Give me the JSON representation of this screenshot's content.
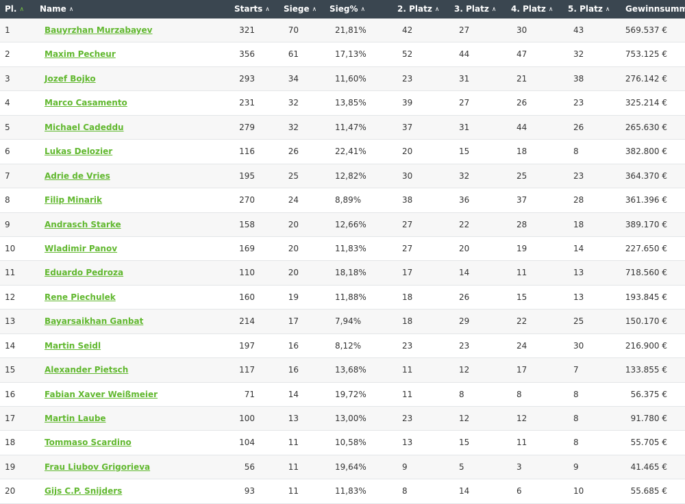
{
  "headers": {
    "pl": "Pl.",
    "name": "Name",
    "starts": "Starts",
    "siege": "Siege",
    "siegpct": "Sieg%",
    "platz2": "2. Platz",
    "platz3": "3. Platz",
    "platz4": "4. Platz",
    "platz5": "5. Platz",
    "gewinn": "Gewinnsumme"
  },
  "sort_icon": "chevron-up-icon",
  "colors": {
    "header_bg": "#3a4650",
    "link": "#61b82f",
    "active_sort": "#7ac943"
  },
  "rows": [
    {
      "pl": "1",
      "name": "Bauyrzhan Murzabayev",
      "starts": "321",
      "siege": "70",
      "pct": "21,81%",
      "p2": "42",
      "p3": "27",
      "p4": "30",
      "p5": "43",
      "sum": "569.537 €"
    },
    {
      "pl": "2",
      "name": "Maxim Pecheur",
      "starts": "356",
      "siege": "61",
      "pct": "17,13%",
      "p2": "52",
      "p3": "44",
      "p4": "47",
      "p5": "32",
      "sum": "753.125 €"
    },
    {
      "pl": "3",
      "name": "Jozef Bojko",
      "starts": "293",
      "siege": "34",
      "pct": "11,60%",
      "p2": "23",
      "p3": "31",
      "p4": "21",
      "p5": "38",
      "sum": "276.142 €"
    },
    {
      "pl": "4",
      "name": "Marco Casamento",
      "starts": "231",
      "siege": "32",
      "pct": "13,85%",
      "p2": "39",
      "p3": "27",
      "p4": "26",
      "p5": "23",
      "sum": "325.214 €"
    },
    {
      "pl": "5",
      "name": "Michael Cadeddu",
      "starts": "279",
      "siege": "32",
      "pct": "11,47%",
      "p2": "37",
      "p3": "31",
      "p4": "44",
      "p5": "26",
      "sum": "265.630 €"
    },
    {
      "pl": "6",
      "name": "Lukas Delozier",
      "starts": "116",
      "siege": "26",
      "pct": "22,41%",
      "p2": "20",
      "p3": "15",
      "p4": "18",
      "p5": "8",
      "sum": "382.800 €"
    },
    {
      "pl": "7",
      "name": "Adrie de Vries",
      "starts": "195",
      "siege": "25",
      "pct": "12,82%",
      "p2": "30",
      "p3": "32",
      "p4": "25",
      "p5": "23",
      "sum": "364.370 €"
    },
    {
      "pl": "8",
      "name": "Filip Minarik",
      "starts": "270",
      "siege": "24",
      "pct": "8,89%",
      "p2": "38",
      "p3": "36",
      "p4": "37",
      "p5": "28",
      "sum": "361.396 €"
    },
    {
      "pl": "9",
      "name": "Andrasch Starke",
      "starts": "158",
      "siege": "20",
      "pct": "12,66%",
      "p2": "27",
      "p3": "22",
      "p4": "28",
      "p5": "18",
      "sum": "389.170 €"
    },
    {
      "pl": "10",
      "name": "Wladimir Panov",
      "starts": "169",
      "siege": "20",
      "pct": "11,83%",
      "p2": "27",
      "p3": "20",
      "p4": "19",
      "p5": "14",
      "sum": "227.650 €"
    },
    {
      "pl": "11",
      "name": "Eduardo Pedroza",
      "starts": "110",
      "siege": "20",
      "pct": "18,18%",
      "p2": "17",
      "p3": "14",
      "p4": "11",
      "p5": "13",
      "sum": "718.560 €"
    },
    {
      "pl": "12",
      "name": "Rene Piechulek",
      "starts": "160",
      "siege": "19",
      "pct": "11,88%",
      "p2": "18",
      "p3": "26",
      "p4": "15",
      "p5": "13",
      "sum": "193.845 €"
    },
    {
      "pl": "13",
      "name": "Bayarsaikhan Ganbat",
      "starts": "214",
      "siege": "17",
      "pct": "7,94%",
      "p2": "18",
      "p3": "29",
      "p4": "22",
      "p5": "25",
      "sum": "150.170 €"
    },
    {
      "pl": "14",
      "name": "Martin Seidl",
      "starts": "197",
      "siege": "16",
      "pct": "8,12%",
      "p2": "23",
      "p3": "23",
      "p4": "24",
      "p5": "30",
      "sum": "216.900 €"
    },
    {
      "pl": "15",
      "name": "Alexander Pietsch",
      "starts": "117",
      "siege": "16",
      "pct": "13,68%",
      "p2": "11",
      "p3": "12",
      "p4": "17",
      "p5": "7",
      "sum": "133.855 €"
    },
    {
      "pl": "16",
      "name": "Fabian Xaver Weißmeier",
      "starts": "71",
      "siege": "14",
      "pct": "19,72%",
      "p2": "11",
      "p3": "8",
      "p4": "8",
      "p5": "8",
      "sum": "56.375 €"
    },
    {
      "pl": "17",
      "name": "Martin Laube",
      "starts": "100",
      "siege": "13",
      "pct": "13,00%",
      "p2": "23",
      "p3": "12",
      "p4": "12",
      "p5": "8",
      "sum": "91.780 €"
    },
    {
      "pl": "18",
      "name": "Tommaso Scardino",
      "starts": "104",
      "siege": "11",
      "pct": "10,58%",
      "p2": "13",
      "p3": "15",
      "p4": "11",
      "p5": "8",
      "sum": "55.705 €"
    },
    {
      "pl": "19",
      "name": "Frau Liubov Grigorieva",
      "starts": "56",
      "siege": "11",
      "pct": "19,64%",
      "p2": "9",
      "p3": "5",
      "p4": "3",
      "p5": "9",
      "sum": "41.465 €"
    },
    {
      "pl": "20",
      "name": "Gijs C.P. Snijders",
      "starts": "93",
      "siege": "11",
      "pct": "11,83%",
      "p2": "8",
      "p3": "14",
      "p4": "6",
      "p5": "10",
      "sum": "55.685 €"
    }
  ]
}
